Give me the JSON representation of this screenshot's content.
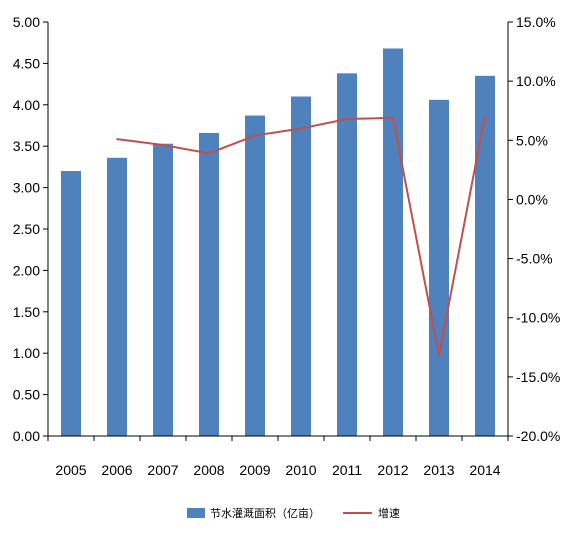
{
  "chart_data": {
    "type": "bar",
    "categories": [
      "2005",
      "2006",
      "2007",
      "2008",
      "2009",
      "2010",
      "2011",
      "2012",
      "2013",
      "2014"
    ],
    "series": [
      {
        "name": "节水灌溉面积（亿亩）",
        "type": "bar",
        "axis": "left",
        "color": "#4F81BD",
        "values": [
          3.2,
          3.36,
          3.53,
          3.66,
          3.87,
          4.1,
          4.38,
          4.68,
          4.06,
          4.35
        ]
      },
      {
        "name": "增速",
        "type": "line",
        "axis": "right",
        "color": "#C0504D",
        "values": [
          null,
          5.1,
          4.6,
          3.9,
          5.4,
          6.0,
          6.8,
          6.9,
          -13.2,
          7.1
        ]
      }
    ],
    "y_left": {
      "min": 0,
      "max": 5,
      "step": 0.5,
      "tick_labels": [
        "0.00",
        "0.50",
        "1.00",
        "1.50",
        "2.00",
        "2.50",
        "3.00",
        "3.50",
        "4.00",
        "4.50",
        "5.00"
      ]
    },
    "y_right": {
      "min": -20,
      "max": 15,
      "step": 5,
      "tick_labels": [
        "-20.0%",
        "-15.0%",
        "-10.0%",
        "-5.0%",
        "0.0%",
        "5.0%",
        "10.0%",
        "15.0%"
      ]
    },
    "grid": false,
    "legend_position": "bottom"
  }
}
